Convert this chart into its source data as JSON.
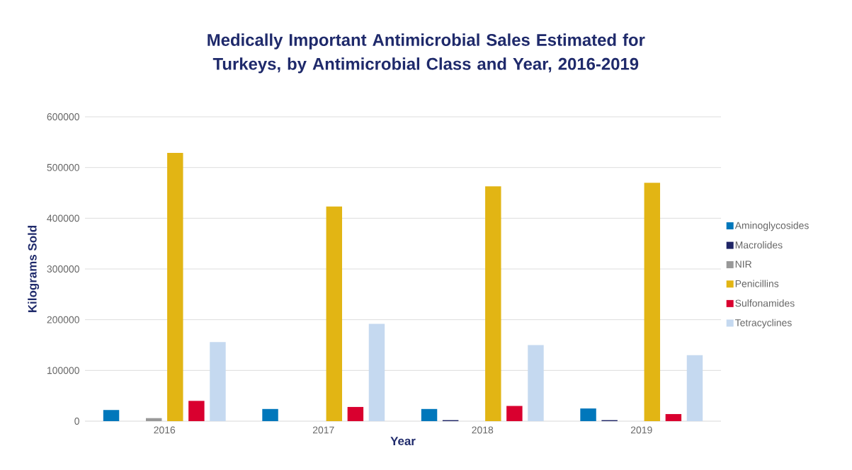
{
  "chart_data": {
    "type": "bar",
    "title": "Medically Important Antimicrobial Sales Estimated for Turkeys, by Antimicrobial Class and Year, 2016-2019",
    "xlabel": "Year",
    "ylabel": "Kilograms Sold",
    "categories": [
      "2016",
      "2017",
      "2018",
      "2019"
    ],
    "series": [
      {
        "name": "Aminoglycosides",
        "color": "#0077bb",
        "values": [
          22000,
          24000,
          24000,
          25000
        ]
      },
      {
        "name": "Macrolides",
        "color": "#1f2566",
        "values": [
          0,
          0,
          2000,
          2000
        ]
      },
      {
        "name": "NIR",
        "color": "#999999",
        "values": [
          6000,
          0,
          0,
          0
        ]
      },
      {
        "name": "Penicillins",
        "color": "#e2b514",
        "values": [
          529000,
          423000,
          463000,
          470000
        ]
      },
      {
        "name": "Sulfonamides",
        "color": "#d9002f",
        "values": [
          40000,
          28000,
          30000,
          14000
        ]
      },
      {
        "name": "Tetracyclines",
        "color": "#c5d9f0",
        "values": [
          156000,
          192000,
          150000,
          130000
        ]
      }
    ],
    "ylim": [
      0,
      600000
    ],
    "yticks": [
      0,
      100000,
      200000,
      300000,
      400000,
      500000,
      600000
    ],
    "grid": "y",
    "legend": "right"
  }
}
